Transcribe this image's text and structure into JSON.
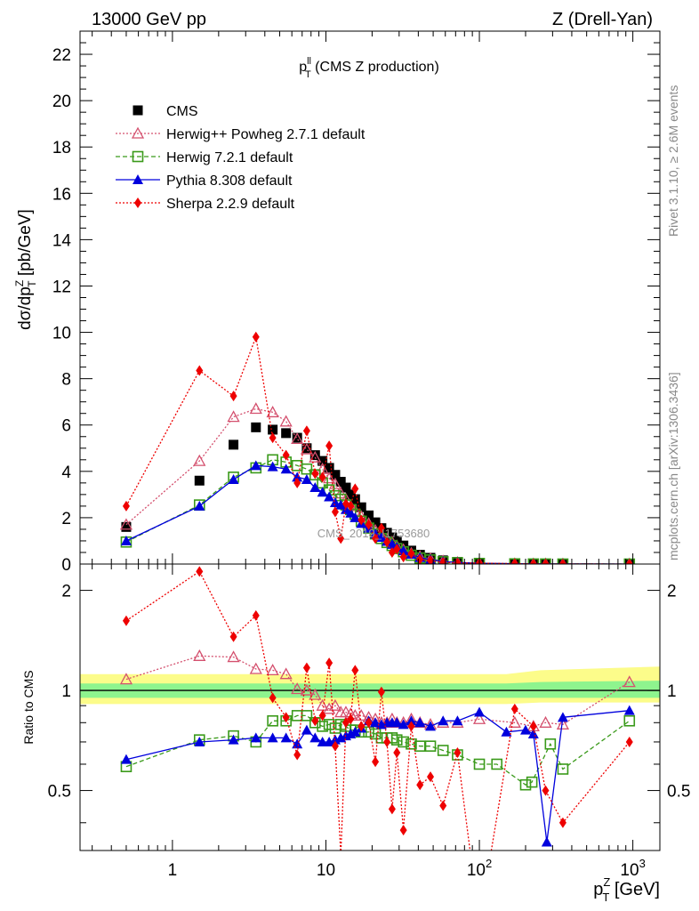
{
  "header": {
    "left": "13000 GeV pp",
    "right": "Z (Drell-Yan)"
  },
  "plot_title": {
    "main": "p",
    "sup": "ll",
    "sub": "T",
    "rest": " (CMS Z production)"
  },
  "side_labels": {
    "upper": "Rivet 3.1.10, ≥ 2.6M events",
    "lower": "mcplots.cern.ch [arXiv:1306.3436]"
  },
  "watermark": "CMS_2019_I1753680",
  "y_label_main": "dσ/dp",
  "y_label_main_sup": "Z",
  "y_label_main_sub": "T",
  "y_label_main_rest": " [pb/GeV]",
  "y_label_ratio": "Ratio to CMS",
  "x_label": "p",
  "x_label_sup": "Z",
  "x_label_sub": "T",
  "x_label_rest": " [GeV]",
  "colors": {
    "cms": "#000000",
    "herwigpp": "#d4506e",
    "herwig7": "#3a9a1a",
    "pythia": "#0000dd",
    "sherpa": "#ee0000",
    "band_inner": "#8ef48e",
    "band_outer": "#fcfc8a"
  },
  "chart_data": [
    {
      "type": "line",
      "xscale": "log",
      "xlim": [
        0.25,
        1500
      ],
      "ylim": [
        0,
        23
      ],
      "yticks": [
        0,
        2,
        4,
        6,
        8,
        10,
        12,
        14,
        16,
        18,
        20,
        22
      ],
      "xticks": [
        {
          "v": 1,
          "base": "1",
          "exp": ""
        },
        {
          "v": 10,
          "base": "10",
          "exp": ""
        },
        {
          "v": 100,
          "base": "10",
          "exp": "2"
        },
        {
          "v": 1000,
          "base": "10",
          "exp": "3"
        }
      ],
      "legend_position": "top-left",
      "series": [
        {
          "key": "cms",
          "name": "CMS",
          "x": [
            0.5,
            1.5,
            2.5,
            3.5,
            4.5,
            5.5,
            6.5,
            7.5,
            8.5,
            9.5,
            10.5,
            11.5,
            12.5,
            13.5,
            14.5,
            15.5,
            17,
            19,
            21,
            23,
            25,
            27,
            29,
            32,
            36,
            41,
            48,
            58,
            72,
            100,
            170,
            225,
            270,
            350,
            950
          ],
          "y": [
            1.6,
            3.6,
            5.15,
            5.9,
            5.8,
            5.65,
            5.45,
            5.0,
            4.7,
            4.45,
            4.15,
            3.85,
            3.55,
            3.3,
            3.0,
            2.8,
            2.45,
            2.1,
            1.8,
            1.55,
            1.35,
            1.15,
            1.0,
            0.8,
            0.58,
            0.4,
            0.27,
            0.16,
            0.09,
            0.045,
            0.015,
            0.008,
            0.006,
            0.004,
            0.0005
          ]
        },
        {
          "key": "herwigpp",
          "name": "Herwig++ Powheg 2.7.1 default",
          "x": [
            0.5,
            1.5,
            2.5,
            3.5,
            4.5,
            5.5,
            6.5,
            7.5,
            8.5,
            9.5,
            10.5,
            11.5,
            12.5,
            13.5,
            14.5,
            15.5,
            17,
            19,
            21,
            23,
            25,
            27,
            29,
            32,
            36,
            41,
            48,
            58,
            72,
            100,
            170,
            225,
            270,
            350,
            950
          ],
          "y": [
            1.7,
            4.45,
            6.35,
            6.7,
            6.55,
            6.15,
            5.4,
            4.95,
            4.6,
            4.1,
            3.7,
            3.45,
            3.05,
            2.8,
            2.5,
            2.3,
            2.05,
            1.75,
            1.45,
            1.25,
            1.08,
            0.95,
            0.78,
            0.62,
            0.46,
            0.32,
            0.22,
            0.13,
            0.07,
            0.036,
            0.012,
            0.006,
            0.005,
            0.003,
            0.0005
          ]
        },
        {
          "key": "herwig7",
          "name": "Herwig 7.2.1 default",
          "x": [
            0.5,
            1.5,
            2.5,
            3.5,
            4.5,
            5.5,
            6.5,
            7.5,
            8.5,
            9.5,
            10.5,
            11.5,
            12.5,
            13.5,
            14.5,
            15.5,
            17,
            19,
            21,
            23,
            25,
            27,
            29,
            32,
            36,
            41,
            48,
            58,
            72,
            100,
            170,
            225,
            270,
            350,
            950
          ],
          "y": [
            0.95,
            2.55,
            3.75,
            4.15,
            4.5,
            4.4,
            4.25,
            4.1,
            3.85,
            3.5,
            3.2,
            2.95,
            2.8,
            2.55,
            2.35,
            2.15,
            1.85,
            1.55,
            1.3,
            1.1,
            0.93,
            0.8,
            0.67,
            0.53,
            0.38,
            0.26,
            0.18,
            0.1,
            0.06,
            0.028,
            0.01,
            0.005,
            0.004,
            0.002,
            0.0004
          ]
        },
        {
          "key": "pythia",
          "name": "Pythia 8.308 default",
          "x": [
            0.5,
            1.5,
            2.5,
            3.5,
            4.5,
            5.5,
            6.5,
            7.5,
            8.5,
            9.5,
            10.5,
            11.5,
            12.5,
            13.5,
            14.5,
            15.5,
            17,
            19,
            21,
            23,
            25,
            27,
            29,
            32,
            36,
            41,
            48,
            58,
            72,
            100,
            170,
            225,
            270,
            350,
            950
          ],
          "y": [
            1.0,
            2.5,
            3.65,
            4.25,
            4.2,
            4.1,
            3.75,
            3.65,
            3.3,
            3.1,
            2.9,
            2.65,
            2.55,
            2.35,
            2.2,
            2.0,
            1.75,
            1.55,
            1.3,
            1.15,
            0.98,
            0.85,
            0.72,
            0.57,
            0.42,
            0.28,
            0.19,
            0.11,
            0.065,
            0.032,
            0.011,
            0.006,
            0.003,
            0.0025,
            0.0004
          ]
        },
        {
          "key": "sherpa",
          "name": "Sherpa 2.2.9 default",
          "x": [
            0.5,
            1.5,
            2.5,
            3.5,
            4.5,
            5.5,
            6.5,
            7.5,
            8.5,
            9.5,
            10.5,
            11.5,
            12.5,
            13.5,
            14.5,
            15.5,
            17,
            19,
            21,
            23,
            25,
            27,
            29,
            32,
            36,
            41,
            48,
            58,
            72,
            100,
            170,
            225,
            270,
            350,
            950
          ],
          "y": [
            2.5,
            8.35,
            7.25,
            9.8,
            5.45,
            4.7,
            3.5,
            5.75,
            3.9,
            3.75,
            5.1,
            2.25,
            1.1,
            2.6,
            2.5,
            3.25,
            1.9,
            1.7,
            1.1,
            1.55,
            0.95,
            0.5,
            0.65,
            0.3,
            0.45,
            0.2,
            0.15,
            0.07,
            0.05,
            0.04,
            0.018,
            0.006,
            0.004,
            0.002,
            0.0004
          ]
        }
      ]
    },
    {
      "type": "line",
      "xscale": "log",
      "xlim": [
        0.25,
        1500
      ],
      "ylim": [
        0.33,
        2.4
      ],
      "yscale": "log",
      "yticks": [
        0.5,
        1,
        2
      ],
      "ytick_labels": [
        "0.5",
        "1",
        "2"
      ],
      "reference": 1,
      "band_inner": [
        [
          0.25,
          0.95,
          1.05
        ],
        [
          150,
          0.95,
          1.05
        ],
        [
          250,
          0.95,
          1.06
        ],
        [
          1500,
          0.95,
          1.07
        ]
      ],
      "band_outer": [
        [
          0.25,
          0.91,
          1.12
        ],
        [
          150,
          0.91,
          1.12
        ],
        [
          250,
          0.92,
          1.15
        ],
        [
          1500,
          0.92,
          1.18
        ]
      ],
      "series": [
        {
          "key": "herwigpp",
          "x": [
            0.5,
            1.5,
            2.5,
            3.5,
            4.5,
            5.5,
            6.5,
            7.5,
            8.5,
            9.5,
            10.5,
            11.5,
            12.5,
            13.5,
            14.5,
            15.5,
            17,
            19,
            21,
            23,
            25,
            27,
            29,
            32,
            36,
            41,
            48,
            58,
            72,
            100,
            170,
            225,
            270,
            350,
            950
          ],
          "y": [
            1.08,
            1.27,
            1.26,
            1.16,
            1.15,
            1.12,
            1.01,
            1.0,
            0.97,
            0.9,
            0.88,
            0.9,
            0.86,
            0.86,
            0.85,
            0.84,
            0.84,
            0.83,
            0.82,
            0.8,
            0.8,
            0.82,
            0.8,
            0.8,
            0.82,
            0.8,
            0.79,
            0.8,
            0.8,
            0.82,
            0.8,
            0.78,
            0.8,
            0.79,
            1.06
          ]
        },
        {
          "key": "herwig7",
          "x": [
            0.5,
            1.5,
            2.5,
            3.5,
            4.5,
            5.5,
            6.5,
            7.5,
            8.5,
            9.5,
            10.5,
            11.5,
            12.5,
            13.5,
            14.5,
            15.5,
            17,
            19,
            21,
            23,
            25,
            27,
            29,
            32,
            36,
            41,
            48,
            58,
            72,
            100,
            130,
            200,
            220,
            290,
            350,
            950
          ],
          "y": [
            0.59,
            0.71,
            0.73,
            0.7,
            0.81,
            0.81,
            0.84,
            0.84,
            0.8,
            0.78,
            0.79,
            0.77,
            0.79,
            0.78,
            0.76,
            0.76,
            0.75,
            0.75,
            0.74,
            0.72,
            0.72,
            0.72,
            0.71,
            0.7,
            0.69,
            0.68,
            0.68,
            0.66,
            0.64,
            0.6,
            0.6,
            0.52,
            0.53,
            0.69,
            0.58,
            0.81
          ]
        },
        {
          "key": "pythia",
          "x": [
            0.5,
            1.5,
            2.5,
            3.5,
            4.5,
            5.5,
            6.5,
            7.5,
            8.5,
            9.5,
            10.5,
            11.5,
            12.5,
            13.5,
            14.5,
            15.5,
            17,
            19,
            21,
            23,
            25,
            27,
            29,
            32,
            36,
            41,
            48,
            58,
            72,
            100,
            150,
            200,
            225,
            275,
            350,
            950
          ],
          "y": [
            0.62,
            0.7,
            0.71,
            0.72,
            0.72,
            0.72,
            0.69,
            0.76,
            0.72,
            0.7,
            0.7,
            0.71,
            0.72,
            0.73,
            0.74,
            0.75,
            0.77,
            0.81,
            0.8,
            0.79,
            0.8,
            0.8,
            0.8,
            0.79,
            0.81,
            0.8,
            0.78,
            0.81,
            0.81,
            0.86,
            0.75,
            0.76,
            0.74,
            0.35,
            0.83,
            0.87
          ]
        },
        {
          "key": "sherpa",
          "x": [
            0.5,
            1.5,
            2.5,
            3.5,
            4.5,
            5.5,
            6.5,
            7.5,
            8.5,
            9.5,
            10.5,
            11.5,
            12.5,
            13.5,
            14.5,
            15.5,
            17,
            19,
            21,
            23,
            25,
            27,
            29,
            32,
            36,
            41,
            48,
            58,
            72,
            100,
            170,
            225,
            270,
            350,
            950
          ],
          "y": [
            1.62,
            2.28,
            1.45,
            1.68,
            0.95,
            0.83,
            0.64,
            1.17,
            0.81,
            0.84,
            1.21,
            0.68,
            0.32,
            0.8,
            0.82,
            1.15,
            0.78,
            0.8,
            0.61,
            0.99,
            0.7,
            0.44,
            0.65,
            0.38,
            0.78,
            0.52,
            0.55,
            0.45,
            0.65,
            0.2,
            0.88,
            0.78,
            0.5,
            0.4,
            0.7
          ]
        }
      ]
    }
  ]
}
